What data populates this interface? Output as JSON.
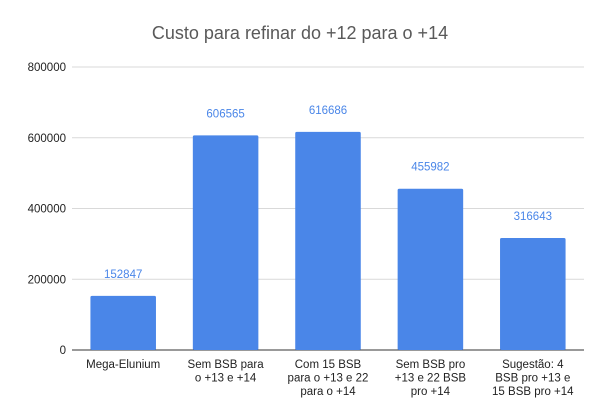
{
  "chart_data": {
    "type": "bar",
    "title": "Custo para refinar do +12 para o +14",
    "xlabel": "",
    "ylabel": "",
    "ylim": [
      0,
      800000
    ],
    "yticks": [
      "0",
      "200000",
      "400000",
      "600000",
      "800000"
    ],
    "grid": true,
    "legend": "none",
    "bar_color": "#4a86e8",
    "data_label_color": "#4a86e8",
    "categories": [
      [
        "Mega-Elunium"
      ],
      [
        "Sem BSB para",
        "o +13 e +14"
      ],
      [
        "Com 15 BSB",
        "para o +13 e 22",
        "para o +14"
      ],
      [
        "Sem BSB pro",
        "+13 e 22 BSB",
        "pro +14"
      ],
      [
        "Sugestão: 4",
        "BSB pro +13 e",
        "15 BSB pro +14"
      ]
    ],
    "values": [
      152847,
      606565,
      616686,
      455982,
      316643
    ]
  }
}
